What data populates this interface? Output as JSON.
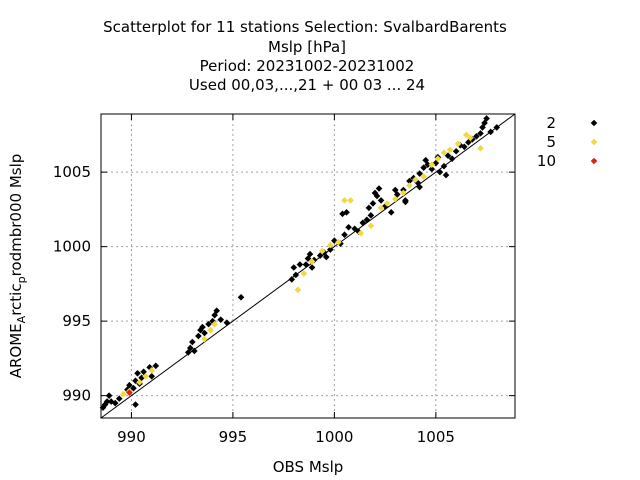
{
  "chart_data": {
    "type": "scatter",
    "title_lines": [
      "Scatterplot for   11 stations Selection: SvalbardBarents",
      "Mslp [hPa]",
      "Period: 20231002-20231002",
      "Used  00,03,...,21  + 00 03 ... 24"
    ],
    "xlabel": "OBS Mslp",
    "ylabel_main": "AROME",
    "ylabel_sub1": "A",
    "ylabel_mid": "rctic",
    "ylabel_sub2": "p",
    "ylabel_end": "rodmbr000 Mslp",
    "xlim": [
      988.5,
      1008.9
    ],
    "ylim": [
      988.5,
      1008.9
    ],
    "x_ticks": [
      990,
      995,
      1000,
      1005
    ],
    "y_ticks": [
      990,
      995,
      1000,
      1005
    ],
    "x_tick_labels": [
      "990",
      "995",
      "1000",
      "1005"
    ],
    "y_tick_labels": [
      "990",
      "995",
      "1000",
      "1005"
    ],
    "grid": true,
    "legend_position": "right",
    "diagonal": true,
    "colors": {
      "2": "#000000",
      "5": "#f0d840",
      "10": "#e02010"
    },
    "series": [
      {
        "name": "2",
        "color": "#000000",
        "points": [
          [
            988.6,
            989.2
          ],
          [
            988.7,
            989.4
          ],
          [
            988.8,
            989.6
          ],
          [
            988.9,
            990.0
          ],
          [
            989.0,
            989.6
          ],
          [
            989.2,
            989.5
          ],
          [
            989.4,
            989.8
          ],
          [
            989.8,
            990.4
          ],
          [
            989.9,
            990.7
          ],
          [
            990.1,
            990.5
          ],
          [
            990.2,
            991.0
          ],
          [
            990.4,
            990.8
          ],
          [
            990.5,
            991.2
          ],
          [
            990.2,
            989.4
          ],
          [
            990.3,
            991.5
          ],
          [
            990.6,
            991.6
          ],
          [
            990.9,
            991.9
          ],
          [
            991.0,
            991.3
          ],
          [
            991.2,
            992.0
          ],
          [
            992.8,
            992.9
          ],
          [
            992.9,
            993.2
          ],
          [
            993.0,
            993.6
          ],
          [
            993.1,
            993.0
          ],
          [
            993.3,
            994.0
          ],
          [
            993.4,
            994.4
          ],
          [
            993.6,
            994.2
          ],
          [
            993.8,
            994.8
          ],
          [
            994.0,
            995.0
          ],
          [
            994.1,
            995.4
          ],
          [
            994.2,
            995.7
          ],
          [
            993.5,
            994.6
          ],
          [
            994.4,
            995.1
          ],
          [
            994.7,
            994.9
          ],
          [
            995.4,
            996.6
          ],
          [
            997.9,
            997.8
          ],
          [
            998.0,
            998.6
          ],
          [
            998.1,
            998.1
          ],
          [
            998.3,
            998.8
          ],
          [
            998.6,
            998.8
          ],
          [
            998.7,
            999.2
          ],
          [
            998.8,
            999.5
          ],
          [
            998.9,
            998.6
          ],
          [
            999.0,
            999.1
          ],
          [
            999.3,
            999.4
          ],
          [
            999.5,
            999.6
          ],
          [
            999.6,
            999.3
          ],
          [
            999.8,
            999.8
          ],
          [
            1000.0,
            1000.4
          ],
          [
            1000.3,
            1000.2
          ],
          [
            1000.5,
            1000.8
          ],
          [
            1000.4,
            1002.2
          ],
          [
            1000.6,
            1002.3
          ],
          [
            1000.7,
            1001.3
          ],
          [
            1001.0,
            1001.2
          ],
          [
            1001.2,
            1001.0
          ],
          [
            1001.4,
            1001.6
          ],
          [
            1001.6,
            1001.8
          ],
          [
            1001.7,
            1002.6
          ],
          [
            1001.8,
            1002.1
          ],
          [
            1001.9,
            1002.9
          ],
          [
            1002.0,
            1003.6
          ],
          [
            1002.1,
            1003.4
          ],
          [
            1002.2,
            1003.9
          ],
          [
            1002.3,
            1003.1
          ],
          [
            1002.5,
            1002.7
          ],
          [
            1002.8,
            1002.3
          ],
          [
            1003.1,
            1003.5
          ],
          [
            1003.4,
            1003.8
          ],
          [
            1003.5,
            1003.1
          ],
          [
            1003.7,
            1004.4
          ],
          [
            1003.9,
            1004.6
          ],
          [
            1004.1,
            1004.3
          ],
          [
            1004.2,
            1004.9
          ],
          [
            1004.4,
            1005.3
          ],
          [
            1004.5,
            1005.8
          ],
          [
            1004.6,
            1005.5
          ],
          [
            1004.8,
            1005.2
          ],
          [
            1005.0,
            1005.6
          ],
          [
            1005.1,
            1006.0
          ],
          [
            1005.2,
            1005.0
          ],
          [
            1005.4,
            1005.4
          ],
          [
            1005.6,
            1006.1
          ],
          [
            1005.8,
            1005.9
          ],
          [
            1006.0,
            1006.4
          ],
          [
            1006.2,
            1006.8
          ],
          [
            1006.4,
            1006.7
          ],
          [
            1006.6,
            1007.0
          ],
          [
            1006.8,
            1007.2
          ],
          [
            1007.0,
            1007.4
          ],
          [
            1007.2,
            1007.6
          ],
          [
            1007.3,
            1008.0
          ],
          [
            1007.4,
            1008.3
          ],
          [
            1007.5,
            1008.6
          ],
          [
            1007.7,
            1007.7
          ],
          [
            1008.0,
            1008.0
          ],
          [
            1003.5,
            1003.0
          ],
          [
            1004.2,
            1004.0
          ],
          [
            1003.0,
            1003.8
          ],
          [
            1005.5,
            1004.8
          ]
        ]
      },
      {
        "name": "5",
        "color": "#f0d840",
        "points": [
          [
            989.6,
            990.1
          ],
          [
            989.9,
            990.3
          ],
          [
            990.4,
            990.9
          ],
          [
            990.7,
            991.3
          ],
          [
            991.0,
            991.7
          ],
          [
            993.6,
            993.8
          ],
          [
            993.9,
            994.4
          ],
          [
            994.1,
            994.8
          ],
          [
            998.2,
            997.1
          ],
          [
            998.5,
            998.2
          ],
          [
            998.9,
            999.0
          ],
          [
            999.4,
            999.7
          ],
          [
            999.8,
            1000.1
          ],
          [
            1000.2,
            1000.3
          ],
          [
            1000.5,
            1003.1
          ],
          [
            1000.8,
            1003.1
          ],
          [
            1001.3,
            1000.9
          ],
          [
            1001.8,
            1001.4
          ],
          [
            1002.3,
            1002.6
          ],
          [
            1002.6,
            1002.9
          ],
          [
            1003.0,
            1003.2
          ],
          [
            1003.4,
            1003.6
          ],
          [
            1003.7,
            1004.1
          ],
          [
            1004.0,
            1004.5
          ],
          [
            1004.4,
            1004.7
          ],
          [
            1004.8,
            1005.5
          ],
          [
            1005.1,
            1005.9
          ],
          [
            1005.4,
            1006.3
          ],
          [
            1005.7,
            1006.5
          ],
          [
            1006.1,
            1006.9
          ],
          [
            1006.5,
            1007.5
          ],
          [
            1006.7,
            1007.3
          ],
          [
            1007.2,
            1006.6
          ]
        ]
      },
      {
        "name": "10",
        "color": "#e02010",
        "points": [
          [
            989.9,
            990.2
          ]
        ]
      }
    ]
  }
}
